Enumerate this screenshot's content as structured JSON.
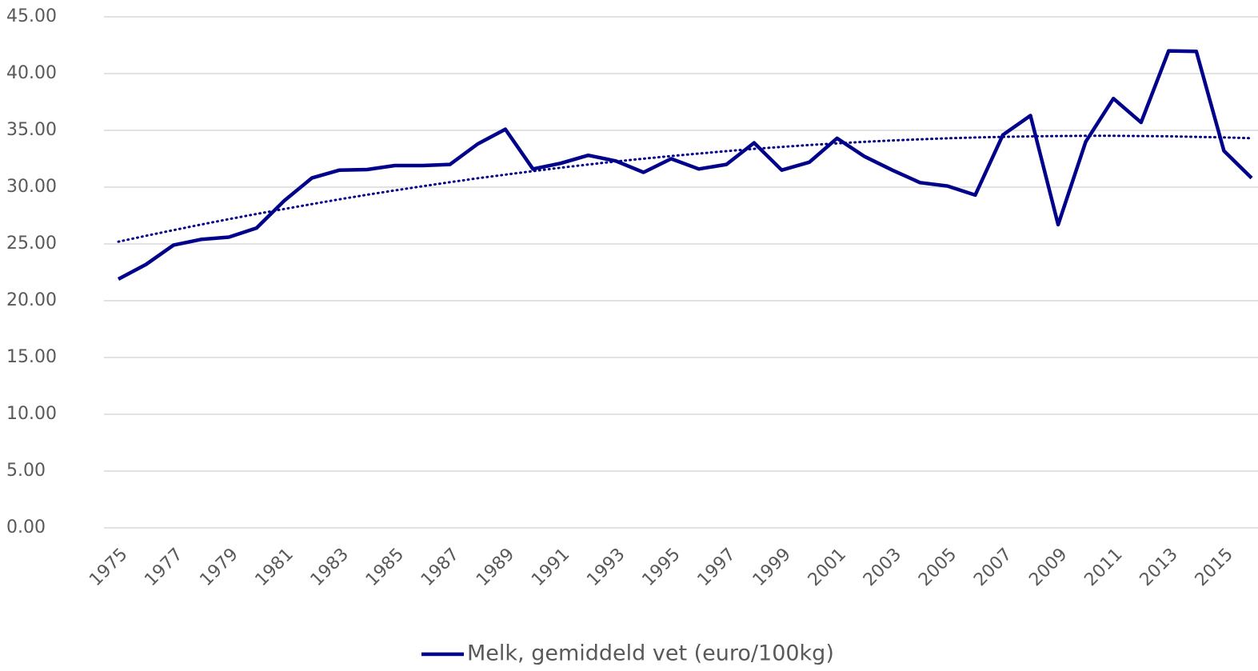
{
  "chart_data": {
    "type": "line",
    "categories": [
      "1975",
      null,
      "1977",
      null,
      "1979",
      null,
      "1981",
      null,
      "1983",
      null,
      "1985",
      null,
      "1987",
      null,
      "1989",
      null,
      "1991",
      null,
      "1993",
      null,
      "1995",
      null,
      "1997",
      null,
      "1999",
      null,
      "2001",
      null,
      "2003",
      null,
      "2005",
      null,
      "2007",
      null,
      "2009",
      null,
      "2011",
      null,
      "2013",
      null,
      "2015",
      null
    ],
    "series": [
      {
        "name": "Melk, gemiddeld vet (euro/100kg)",
        "color": "#00008b",
        "values": [
          21.9,
          23.2,
          24.9,
          25.4,
          25.6,
          26.4,
          28.8,
          30.8,
          31.5,
          31.55,
          31.9,
          31.9,
          32.0,
          33.8,
          35.1,
          31.6,
          32.1,
          32.8,
          32.3,
          31.3,
          32.5,
          31.6,
          32.0,
          33.9,
          31.5,
          32.2,
          34.3,
          32.7,
          31.5,
          30.4,
          30.1,
          29.3,
          34.6,
          36.3,
          26.7,
          34.0,
          37.8,
          35.7,
          42.0,
          41.95,
          33.2,
          30.8
        ]
      }
    ],
    "trendline": {
      "color": "#00008b",
      "style": "dotted",
      "values": [
        25.2,
        25.72,
        26.22,
        26.71,
        27.18,
        27.64,
        28.08,
        28.51,
        28.93,
        29.33,
        29.71,
        30.08,
        30.44,
        30.78,
        31.1,
        31.41,
        31.71,
        31.99,
        32.26,
        32.51,
        32.74,
        32.96,
        33.17,
        33.37,
        33.54,
        33.71,
        33.85,
        33.99,
        34.11,
        34.21,
        34.3,
        34.37,
        34.43,
        34.47,
        34.5,
        34.52,
        34.52,
        34.5,
        34.48,
        34.43,
        34.38,
        34.31
      ]
    },
    "ylim": [
      0,
      45
    ],
    "yticks": [
      {
        "value": 0,
        "label": "0.00"
      },
      {
        "value": 5,
        "label": "5.00"
      },
      {
        "value": 10,
        "label": "10.00"
      },
      {
        "value": 15,
        "label": "15.00"
      },
      {
        "value": 20,
        "label": "20.00"
      },
      {
        "value": 25,
        "label": "25.00"
      },
      {
        "value": 30,
        "label": "30.00"
      },
      {
        "value": 35,
        "label": "35.00"
      },
      {
        "value": 40,
        "label": "40.00"
      },
      {
        "value": 45,
        "label": "45.00"
      }
    ],
    "grid": true,
    "legend": "bottom"
  }
}
